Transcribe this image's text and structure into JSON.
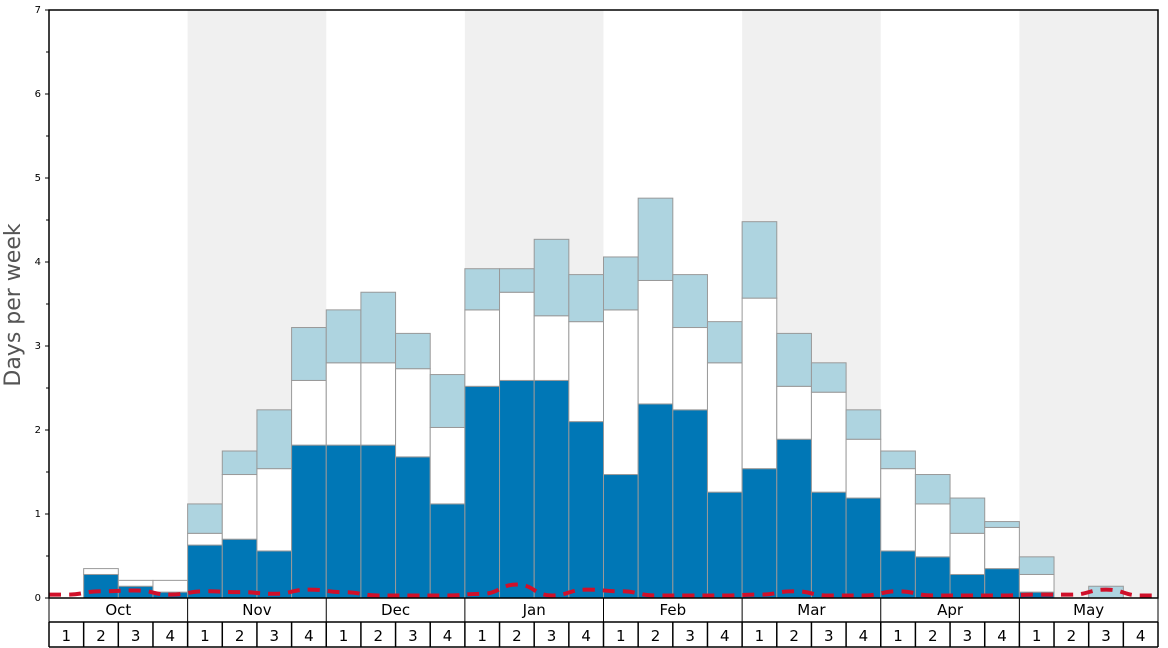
{
  "chart_data": {
    "type": "bar",
    "stacked": true,
    "ylabel": "Days per week",
    "ylim": [
      0,
      7
    ],
    "y_ticks": [
      0,
      1,
      2,
      3,
      4,
      5,
      6,
      7
    ],
    "months": [
      "Oct",
      "Nov",
      "Dec",
      "Jan",
      "Feb",
      "Mar",
      "Apr",
      "May"
    ],
    "week_labels": [
      "1",
      "2",
      "3",
      "4"
    ],
    "alternate_month_shading": true,
    "series": [
      {
        "color": "#0077b6",
        "values": [
          0,
          0.28,
          0.14,
          0.07,
          0.63,
          0.7,
          0.56,
          1.82,
          1.82,
          1.82,
          1.68,
          1.12,
          2.52,
          2.59,
          2.59,
          2.1,
          1.47,
          2.31,
          2.24,
          1.26,
          1.54,
          1.89,
          1.26,
          1.19,
          0.56,
          0.49,
          0.28,
          0.35,
          0.07,
          0,
          0,
          0
        ]
      },
      {
        "color": "#ffffff",
        "values": [
          0,
          0.07,
          0.07,
          0.14,
          0.14,
          0.77,
          0.98,
          0.77,
          0.98,
          0.98,
          1.05,
          0.91,
          0.91,
          1.05,
          0.77,
          1.19,
          1.96,
          1.47,
          0.98,
          1.54,
          2.03,
          0.63,
          1.19,
          0.7,
          0.98,
          0.63,
          0.49,
          0.49,
          0.21,
          0,
          0,
          0
        ]
      },
      {
        "color": "#aed4e0",
        "values": [
          0,
          0,
          0,
          0,
          0.35,
          0.28,
          0.7,
          0.63,
          0.63,
          0.84,
          0.42,
          0.63,
          0.49,
          0.28,
          0.91,
          0.56,
          0.63,
          0.98,
          0.63,
          0.49,
          0.91,
          0.63,
          0.35,
          0.35,
          0.21,
          0.35,
          0.42,
          0.07,
          0.21,
          0,
          0.14,
          0
        ]
      }
    ],
    "line": {
      "color": "#d0102a",
      "style": "dashed",
      "values": [
        0.04,
        0.08,
        0.09,
        0.04,
        0.08,
        0.07,
        0.05,
        0.1,
        0.07,
        0.03,
        0.03,
        0.03,
        0.05,
        0.16,
        0.03,
        0.1,
        0.08,
        0.03,
        0.03,
        0.03,
        0.04,
        0.08,
        0.03,
        0.03,
        0.08,
        0.03,
        0.03,
        0.03,
        0.04,
        0.04,
        0.1,
        0.03
      ]
    }
  }
}
